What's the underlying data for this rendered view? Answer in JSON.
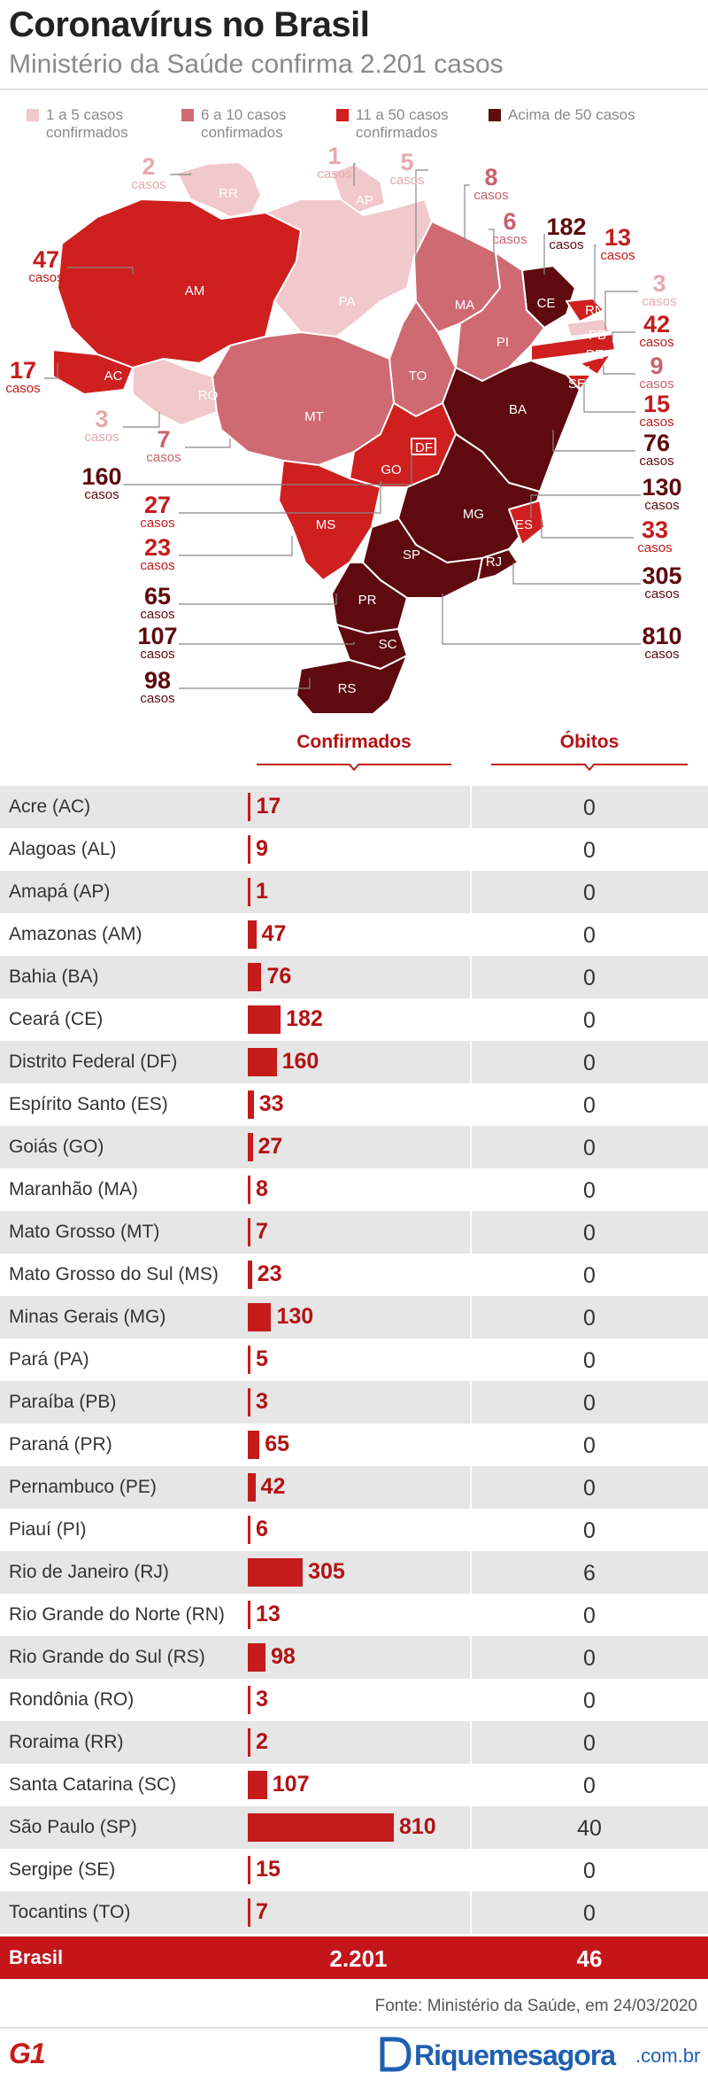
{
  "header": {
    "title": "Coronavírus no Brasil",
    "subtitle": "Ministério da Saúde confirma 2.201 casos"
  },
  "legend": [
    {
      "label": "1 a 5 casos\nconfirmados",
      "color": "#f1c8cb"
    },
    {
      "label": "6 a 10 casos\nconfirmados",
      "color": "#cf6a72"
    },
    {
      "label": "11 a 50 casos\nconfirmados",
      "color": "#cf1f1f"
    },
    {
      "label": "Acima de 50 casos",
      "color": "#5e0a0e"
    }
  ],
  "colors": {
    "tier1": "#f1c8cb",
    "tier2": "#cf6a72",
    "tier3": "#cf1f1f",
    "tier4": "#5e0a0e",
    "accent": "#c51b1b",
    "tier1_text": "#e6a9ae",
    "tier2_text": "#c9626b"
  },
  "map": {
    "casos_label": "casos",
    "state_labels": [
      "RR",
      "AP",
      "AM",
      "PA",
      "MA",
      "CE",
      "RN",
      "PB",
      "PE",
      "AL",
      "SE",
      "PI",
      "TO",
      "BA",
      "AC",
      "RO",
      "MT",
      "DF",
      "GO",
      "MG",
      "ES",
      "MS",
      "SP",
      "RJ",
      "PR",
      "SC",
      "RS"
    ]
  },
  "columns": {
    "confirmed": "Confirmados",
    "deaths": "Óbitos"
  },
  "chart_data": {
    "type": "table",
    "columns": [
      "Confirmados",
      "Óbitos"
    ],
    "rows": [
      {
        "state": "Acre (AC)",
        "uf": "AC",
        "confirmed": 17,
        "deaths": 0
      },
      {
        "state": "Alagoas (AL)",
        "uf": "AL",
        "confirmed": 9,
        "deaths": 0
      },
      {
        "state": "Amapá (AP)",
        "uf": "AP",
        "confirmed": 1,
        "deaths": 0
      },
      {
        "state": "Amazonas (AM)",
        "uf": "AM",
        "confirmed": 47,
        "deaths": 0
      },
      {
        "state": "Bahia (BA)",
        "uf": "BA",
        "confirmed": 76,
        "deaths": 0
      },
      {
        "state": "Ceará (CE)",
        "uf": "CE",
        "confirmed": 182,
        "deaths": 0
      },
      {
        "state": "Distrito Federal (DF)",
        "uf": "DF",
        "confirmed": 160,
        "deaths": 0
      },
      {
        "state": "Espírito Santo (ES)",
        "uf": "ES",
        "confirmed": 33,
        "deaths": 0
      },
      {
        "state": "Goiás (GO)",
        "uf": "GO",
        "confirmed": 27,
        "deaths": 0
      },
      {
        "state": "Maranhão (MA)",
        "uf": "MA",
        "confirmed": 8,
        "deaths": 0
      },
      {
        "state": "Mato Grosso (MT)",
        "uf": "MT",
        "confirmed": 7,
        "deaths": 0
      },
      {
        "state": "Mato Grosso do Sul (MS)",
        "uf": "MS",
        "confirmed": 23,
        "deaths": 0
      },
      {
        "state": "Minas Gerais (MG)",
        "uf": "MG",
        "confirmed": 130,
        "deaths": 0
      },
      {
        "state": "Pará (PA)",
        "uf": "PA",
        "confirmed": 5,
        "deaths": 0
      },
      {
        "state": "Paraíba (PB)",
        "uf": "PB",
        "confirmed": 3,
        "deaths": 0
      },
      {
        "state": "Paraná (PR)",
        "uf": "PR",
        "confirmed": 65,
        "deaths": 0
      },
      {
        "state": "Pernambuco (PE)",
        "uf": "PE",
        "confirmed": 42,
        "deaths": 0
      },
      {
        "state": "Piauí (PI)",
        "uf": "PI",
        "confirmed": 6,
        "deaths": 0
      },
      {
        "state": "Rio de Janeiro (RJ)",
        "uf": "RJ",
        "confirmed": 305,
        "deaths": 6
      },
      {
        "state": "Rio Grande do Norte (RN)",
        "uf": "RN",
        "confirmed": 13,
        "deaths": 0
      },
      {
        "state": "Rio Grande do Sul (RS)",
        "uf": "RS",
        "confirmed": 98,
        "deaths": 0
      },
      {
        "state": "Rondônia (RO)",
        "uf": "RO",
        "confirmed": 3,
        "deaths": 0
      },
      {
        "state": "Roraima (RR)",
        "uf": "RR",
        "confirmed": 2,
        "deaths": 0
      },
      {
        "state": "Santa Catarina (SC)",
        "uf": "SC",
        "confirmed": 107,
        "deaths": 0
      },
      {
        "state": "São Paulo (SP)",
        "uf": "SP",
        "confirmed": 810,
        "deaths": 40
      },
      {
        "state": "Sergipe (SE)",
        "uf": "SE",
        "confirmed": 15,
        "deaths": 0
      },
      {
        "state": "Tocantins (TO)",
        "uf": "TO",
        "confirmed": 7,
        "deaths": 0
      }
    ],
    "total": {
      "label": "Brasil",
      "confirmed": "2.201",
      "deaths": "46"
    }
  },
  "footer": {
    "source": "Fonte: Ministério da Saúde, em 24/03/2020",
    "logo": "G1",
    "watermark": "Riquemesagora",
    "watermark_tld": ".com.br"
  }
}
